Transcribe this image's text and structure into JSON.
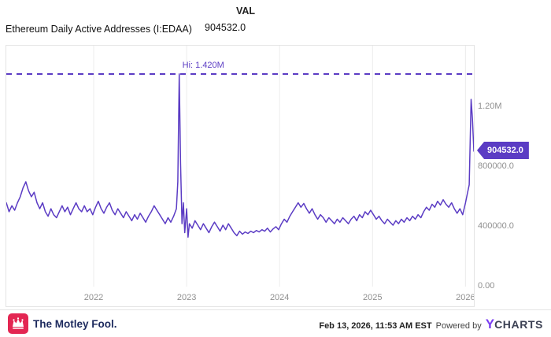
{
  "header": {
    "col_label": "VAL",
    "title": "Ethereum Daily Active Addresses (I:EDAA)",
    "value": "904532.0"
  },
  "chart_data": {
    "type": "line",
    "title": "Ethereum Daily Active Addresses (I:EDAA)",
    "line_color": "#5b3cc4",
    "grid_color": "#ececec",
    "tick_color": "#8f8f8f",
    "hi_line": {
      "label": "Hi: 1.420M",
      "value": 1420000,
      "x": 2022.92
    },
    "x_range": [
      2021.06,
      2026.09
    ],
    "y_range": [
      0,
      1609000
    ],
    "x_ticks": [
      {
        "label": "2022",
        "value": 2022
      },
      {
        "label": "2023",
        "value": 2023
      },
      {
        "label": "2024",
        "value": 2024
      },
      {
        "label": "2025",
        "value": 2025
      },
      {
        "label": "2026",
        "value": 2026
      }
    ],
    "y_ticks": [
      {
        "label": "1.20M",
        "value": 1200000
      },
      {
        "label": "800000.0",
        "value": 800000
      },
      {
        "label": "400000.0",
        "value": 400000
      },
      {
        "label": "0.00",
        "value": 0
      }
    ],
    "last_value_badge": "904532.0",
    "last_value": 904532,
    "points": [
      [
        2021.06,
        560000
      ],
      [
        2021.09,
        500000
      ],
      [
        2021.12,
        540000
      ],
      [
        2021.15,
        510000
      ],
      [
        2021.18,
        560000
      ],
      [
        2021.21,
        600000
      ],
      [
        2021.24,
        660000
      ],
      [
        2021.27,
        700000
      ],
      [
        2021.3,
        640000
      ],
      [
        2021.33,
        600000
      ],
      [
        2021.36,
        630000
      ],
      [
        2021.39,
        560000
      ],
      [
        2021.42,
        520000
      ],
      [
        2021.45,
        560000
      ],
      [
        2021.48,
        500000
      ],
      [
        2021.51,
        470000
      ],
      [
        2021.54,
        520000
      ],
      [
        2021.57,
        480000
      ],
      [
        2021.6,
        460000
      ],
      [
        2021.63,
        500000
      ],
      [
        2021.66,
        540000
      ],
      [
        2021.69,
        500000
      ],
      [
        2021.72,
        530000
      ],
      [
        2021.75,
        480000
      ],
      [
        2021.78,
        520000
      ],
      [
        2021.81,
        560000
      ],
      [
        2021.84,
        520000
      ],
      [
        2021.87,
        500000
      ],
      [
        2021.9,
        540000
      ],
      [
        2021.93,
        500000
      ],
      [
        2021.96,
        520000
      ],
      [
        2021.99,
        480000
      ],
      [
        2022.02,
        530000
      ],
      [
        2022.05,
        570000
      ],
      [
        2022.08,
        520000
      ],
      [
        2022.11,
        490000
      ],
      [
        2022.14,
        530000
      ],
      [
        2022.17,
        560000
      ],
      [
        2022.2,
        510000
      ],
      [
        2022.23,
        480000
      ],
      [
        2022.26,
        520000
      ],
      [
        2022.29,
        490000
      ],
      [
        2022.32,
        460000
      ],
      [
        2022.35,
        500000
      ],
      [
        2022.38,
        470000
      ],
      [
        2022.41,
        440000
      ],
      [
        2022.44,
        480000
      ],
      [
        2022.47,
        450000
      ],
      [
        2022.5,
        490000
      ],
      [
        2022.53,
        460000
      ],
      [
        2022.56,
        430000
      ],
      [
        2022.59,
        470000
      ],
      [
        2022.62,
        500000
      ],
      [
        2022.65,
        540000
      ],
      [
        2022.68,
        510000
      ],
      [
        2022.71,
        480000
      ],
      [
        2022.74,
        450000
      ],
      [
        2022.77,
        420000
      ],
      [
        2022.8,
        460000
      ],
      [
        2022.83,
        430000
      ],
      [
        2022.86,
        470000
      ],
      [
        2022.89,
        520000
      ],
      [
        2022.905,
        700000
      ],
      [
        2022.92,
        1420000
      ],
      [
        2022.935,
        820000
      ],
      [
        2022.95,
        420000
      ],
      [
        2022.965,
        560000
      ],
      [
        2022.98,
        360000
      ],
      [
        2023.0,
        520000
      ],
      [
        2023.015,
        330000
      ],
      [
        2023.03,
        420000
      ],
      [
        2023.06,
        390000
      ],
      [
        2023.09,
        440000
      ],
      [
        2023.12,
        410000
      ],
      [
        2023.15,
        380000
      ],
      [
        2023.18,
        420000
      ],
      [
        2023.21,
        390000
      ],
      [
        2023.24,
        360000
      ],
      [
        2023.27,
        400000
      ],
      [
        2023.3,
        430000
      ],
      [
        2023.33,
        400000
      ],
      [
        2023.36,
        370000
      ],
      [
        2023.39,
        410000
      ],
      [
        2023.42,
        380000
      ],
      [
        2023.45,
        420000
      ],
      [
        2023.48,
        390000
      ],
      [
        2023.51,
        360000
      ],
      [
        2023.54,
        340000
      ],
      [
        2023.57,
        370000
      ],
      [
        2023.6,
        350000
      ],
      [
        2023.63,
        365000
      ],
      [
        2023.66,
        355000
      ],
      [
        2023.69,
        370000
      ],
      [
        2023.72,
        360000
      ],
      [
        2023.75,
        375000
      ],
      [
        2023.78,
        365000
      ],
      [
        2023.81,
        380000
      ],
      [
        2023.84,
        370000
      ],
      [
        2023.87,
        390000
      ],
      [
        2023.9,
        365000
      ],
      [
        2023.93,
        385000
      ],
      [
        2023.96,
        400000
      ],
      [
        2023.99,
        380000
      ],
      [
        2024.02,
        420000
      ],
      [
        2024.05,
        450000
      ],
      [
        2024.08,
        430000
      ],
      [
        2024.11,
        470000
      ],
      [
        2024.14,
        500000
      ],
      [
        2024.17,
        530000
      ],
      [
        2024.2,
        560000
      ],
      [
        2024.23,
        530000
      ],
      [
        2024.26,
        555000
      ],
      [
        2024.29,
        520000
      ],
      [
        2024.32,
        490000
      ],
      [
        2024.35,
        520000
      ],
      [
        2024.38,
        480000
      ],
      [
        2024.41,
        450000
      ],
      [
        2024.44,
        480000
      ],
      [
        2024.47,
        460000
      ],
      [
        2024.5,
        430000
      ],
      [
        2024.53,
        460000
      ],
      [
        2024.56,
        440000
      ],
      [
        2024.59,
        420000
      ],
      [
        2024.62,
        450000
      ],
      [
        2024.65,
        430000
      ],
      [
        2024.68,
        460000
      ],
      [
        2024.71,
        440000
      ],
      [
        2024.74,
        420000
      ],
      [
        2024.77,
        450000
      ],
      [
        2024.8,
        470000
      ],
      [
        2024.83,
        440000
      ],
      [
        2024.86,
        480000
      ],
      [
        2024.89,
        460000
      ],
      [
        2024.92,
        500000
      ],
      [
        2024.95,
        480000
      ],
      [
        2024.98,
        510000
      ],
      [
        2025.01,
        480000
      ],
      [
        2025.04,
        450000
      ],
      [
        2025.07,
        470000
      ],
      [
        2025.1,
        440000
      ],
      [
        2025.13,
        420000
      ],
      [
        2025.16,
        450000
      ],
      [
        2025.19,
        430000
      ],
      [
        2025.22,
        410000
      ],
      [
        2025.25,
        440000
      ],
      [
        2025.28,
        420000
      ],
      [
        2025.31,
        450000
      ],
      [
        2025.34,
        430000
      ],
      [
        2025.37,
        460000
      ],
      [
        2025.4,
        440000
      ],
      [
        2025.43,
        470000
      ],
      [
        2025.46,
        450000
      ],
      [
        2025.49,
        480000
      ],
      [
        2025.52,
        460000
      ],
      [
        2025.55,
        500000
      ],
      [
        2025.58,
        530000
      ],
      [
        2025.61,
        510000
      ],
      [
        2025.64,
        550000
      ],
      [
        2025.67,
        530000
      ],
      [
        2025.7,
        570000
      ],
      [
        2025.73,
        545000
      ],
      [
        2025.76,
        580000
      ],
      [
        2025.79,
        550000
      ],
      [
        2025.82,
        530000
      ],
      [
        2025.85,
        560000
      ],
      [
        2025.88,
        520000
      ],
      [
        2025.91,
        490000
      ],
      [
        2025.94,
        520000
      ],
      [
        2025.97,
        480000
      ],
      [
        2026.0,
        560000
      ],
      [
        2026.02,
        620000
      ],
      [
        2026.04,
        680000
      ],
      [
        2026.06,
        1250000
      ],
      [
        2026.075,
        1120000
      ],
      [
        2026.09,
        904532
      ]
    ]
  },
  "footer": {
    "brand": "The Motley Fool.",
    "timestamp": "Feb 13, 2026, 11:53 AM EST",
    "powered_by": "Powered by",
    "ycharts_y": "Y",
    "ycharts_rest": "CHARTS"
  }
}
